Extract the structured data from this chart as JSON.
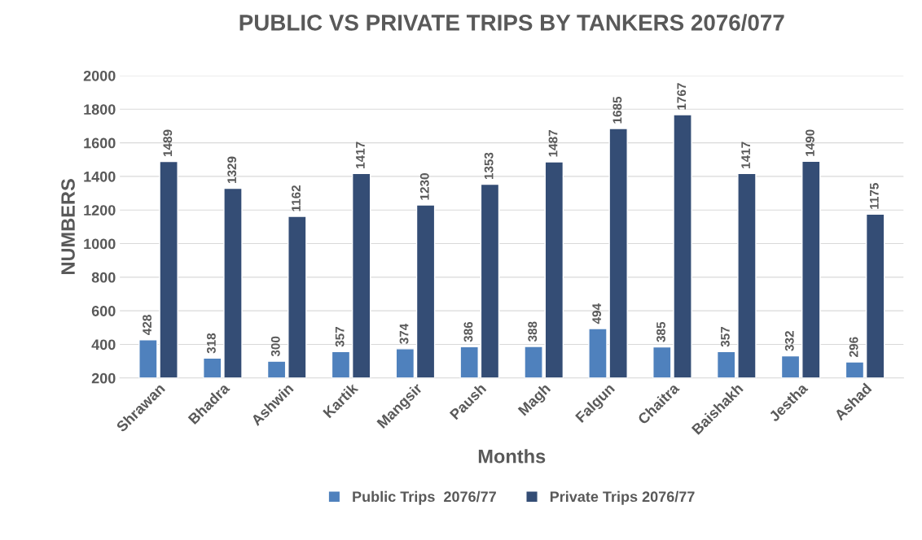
{
  "chart_data": {
    "type": "bar",
    "title": "PUBLIC VS PRIVATE TRIPS BY TANKERS 2076/077",
    "xlabel": "Months",
    "ylabel": "NUMBERS",
    "categories": [
      "Shrawan",
      "Bhadra",
      "Ashwin",
      "Kartik",
      "Mangsir",
      "Paush",
      "Magh",
      "Falgun",
      "Chaitra",
      "Baishakh",
      "Jestha",
      "Ashad"
    ],
    "series": [
      {
        "name": "Public Trips  2076/77",
        "color": "#4f81bd",
        "values": [
          428,
          318,
          300,
          357,
          374,
          386,
          388,
          494,
          385,
          357,
          332,
          296
        ]
      },
      {
        "name": "Private Trips 2076/77",
        "color": "#344d75",
        "values": [
          1489,
          1329,
          1162,
          1417,
          1230,
          1353,
          1487,
          1685,
          1767,
          1417,
          1490,
          1175
        ]
      }
    ],
    "ylim": [
      200,
      2000
    ],
    "yticks": [
      200,
      400,
      600,
      800,
      1000,
      1200,
      1400,
      1600,
      1800,
      2000
    ],
    "grid": "y",
    "legend": "bottom",
    "data_labels": true
  }
}
